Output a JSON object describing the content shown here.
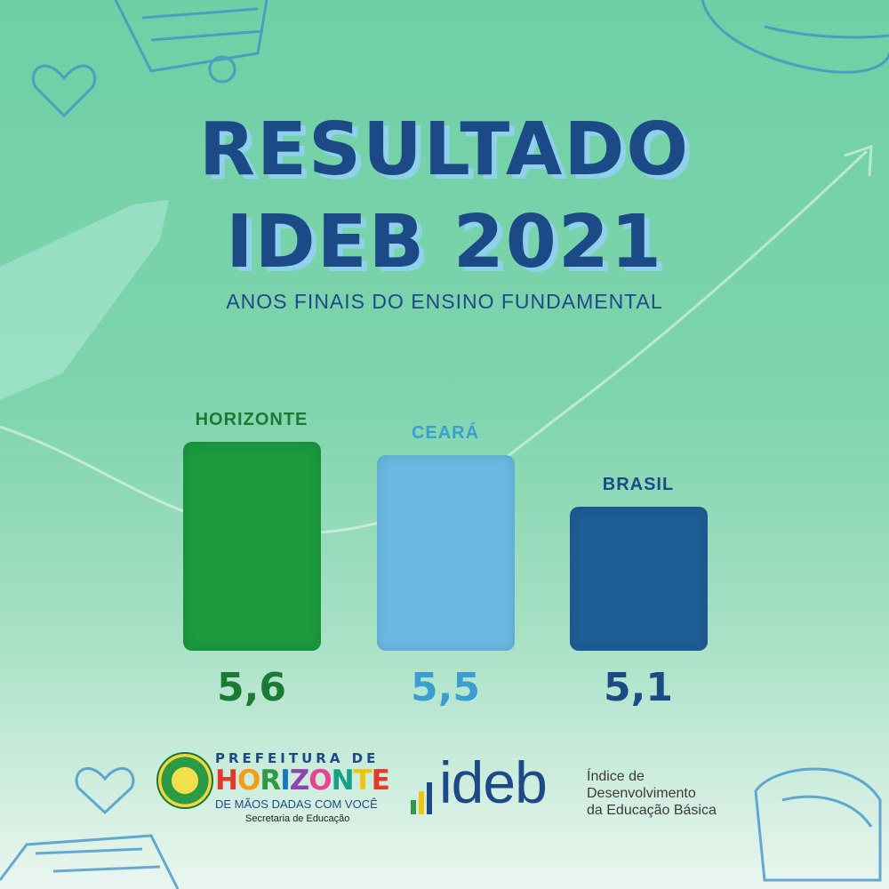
{
  "title_line1": "RESULTADO",
  "title_line2": "IDEB 2021",
  "subtitle": "ANOS FINAIS DO ENSINO FUNDAMENTAL",
  "colors": {
    "title": "#1c4a86",
    "title_shadow": "#8fd0ea",
    "horizonte": "#1b9a3e",
    "ceara": "#6ab8e2",
    "brasil": "#1f5d96"
  },
  "chart_data": {
    "type": "bar",
    "categories": [
      "HORIZONTE",
      "CEARÁ",
      "BRASIL"
    ],
    "values": [
      5.6,
      5.5,
      5.1
    ],
    "value_labels": [
      "5,6",
      "5,5",
      "5,1"
    ],
    "title": "RESULTADO IDEB 2021",
    "subtitle": "ANOS FINAIS DO ENSINO FUNDAMENTAL",
    "xlabel": "",
    "ylabel": "",
    "grid": false,
    "legend": "none",
    "bar_colors": [
      "#1b9a3e",
      "#6ab8e2",
      "#1f5d96"
    ],
    "label_colors": [
      "#1b7a33",
      "#3a9fd0",
      "#1c4a86"
    ]
  },
  "prefeitura": {
    "top": "PREFEITURA DE",
    "city": "HORIZONTE",
    "motto": "DE MÃOS DADAS COM VOCÊ",
    "department": "Secretaria de Educação"
  },
  "ideb_logo": {
    "word": "ideb",
    "description_line1": "Índice de",
    "description_line2": "Desenvolvimento",
    "description_line3": "da Educação Básica"
  },
  "icons": [
    "heart-icon",
    "hat-icon",
    "shopping-cart-icon",
    "growth-arrow-icon"
  ]
}
